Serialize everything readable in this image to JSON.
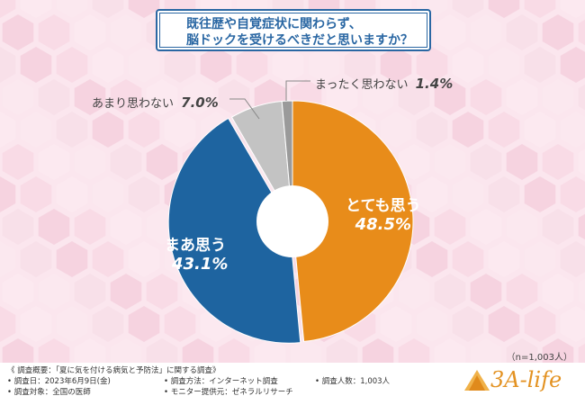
{
  "title": {
    "line1": "既往歴や自覚症状に関わらず、",
    "line2": "脳ドックを受けるべきだと思いますか？"
  },
  "colors": {
    "accent": "#2a67a3",
    "orange": "#e88c1a",
    "blue": "#1e64a0",
    "gray": "#c3c3c3",
    "darkgray": "#9a9a9a"
  },
  "chart_data": {
    "type": "pie",
    "donut": true,
    "categories": [
      "とても思う",
      "まあ思う",
      "あまり思わない",
      "まったく思わない"
    ],
    "values": [
      48.5,
      43.1,
      7.0,
      1.4
    ],
    "value_labels": [
      "48.5%",
      "43.1%",
      "7.0%",
      "1.4%"
    ],
    "legend": "none"
  },
  "sample": "（n=1,003人）",
  "footer": {
    "heading": "《 調査概要：「夏に気を付ける病気と予防法」に関する調査》",
    "date": "• 調査日：2023年6月9日(金)",
    "target": "• 調査対象：全国の医師",
    "method": "• 調査方法：インターネット調査",
    "provider": "• モニター提供元：ゼネラルリサーチ",
    "count": "• 調査人数：1,003人",
    "logo": "3A-life"
  }
}
